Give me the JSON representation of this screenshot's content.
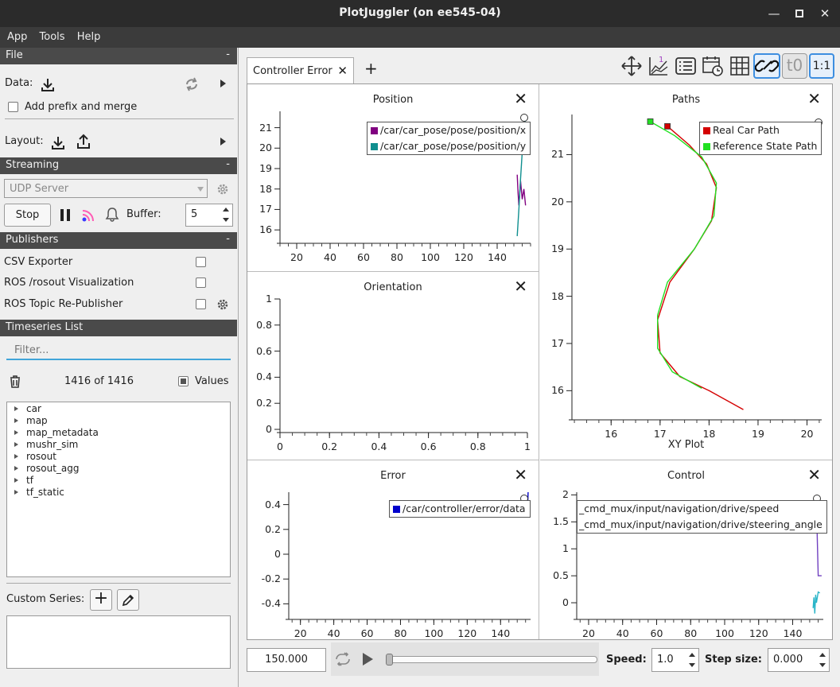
{
  "window": {
    "title": "PlotJuggler (on ee545-04)"
  },
  "menu": [
    "App",
    "Tools",
    "Help"
  ],
  "left": {
    "file": {
      "header": "File",
      "data_label": "Data:",
      "add_prefix_label": "Add prefix and merge",
      "layout_label": "Layout:"
    },
    "streaming": {
      "header": "Streaming",
      "source": "UDP Server",
      "stop_label": "Stop",
      "buffer_label": "Buffer:",
      "buffer_value": "5"
    },
    "publishers": {
      "header": "Publishers",
      "items": [
        "CSV Exporter",
        "ROS /rosout Visualization",
        "ROS Topic Re-Publisher"
      ]
    },
    "timeseries": {
      "header": "Timeseries List",
      "filter_placeholder": "Filter...",
      "count": "1416 of 1416",
      "values_label": "Values",
      "items": [
        "car",
        "map",
        "map_metadata",
        "mushr_sim",
        "rosout",
        "rosout_agg",
        "tf",
        "tf_static"
      ]
    },
    "custom": {
      "label": "Custom Series:"
    },
    "collapse": "-"
  },
  "tabs": [
    {
      "label": "Controller Error"
    }
  ],
  "add_tab": "+",
  "toolbar": {
    "t0_label": "t0",
    "ratio_label": "1:1"
  },
  "bottom": {
    "time": "150.000",
    "speed_label": "Speed:",
    "speed": "1.0",
    "step_label": "Step size:",
    "step": "0.000"
  },
  "colors": {
    "purple": "#800080",
    "teal": "#108f8f",
    "red": "#d40000",
    "green": "#22e022",
    "blue": "#0000cc",
    "light_blue": "#2ab5c8",
    "violet": "#7040c0"
  },
  "chart_data": [
    {
      "type": "line",
      "title": "Position",
      "xlim": [
        10,
        160
      ],
      "ylim": [
        15.5,
        21.8
      ],
      "x_ticks": [
        "20",
        "40",
        "60",
        "80",
        "100",
        "120",
        "140"
      ],
      "y_ticks": [
        "16",
        "17",
        "18",
        "19",
        "20",
        "21"
      ],
      "series": [
        {
          "name": "/car/car_pose/pose/position/x",
          "color": "#800080",
          "x": [
            152,
            152.5,
            153,
            154,
            155,
            156,
            157
          ],
          "y": [
            18.7,
            17.8,
            17.2,
            18.4,
            17.5,
            18.0,
            17.2
          ]
        },
        {
          "name": "/car/car_pose/pose/position/y",
          "color": "#108f8f",
          "x": [
            152,
            153,
            154,
            155,
            156,
            157,
            157.5
          ],
          "y": [
            15.7,
            17.0,
            18.5,
            19.8,
            20.8,
            21.5,
            21.6
          ]
        }
      ]
    },
    {
      "type": "line",
      "title": "Orientation",
      "xlim": [
        0,
        1
      ],
      "ylim": [
        0,
        1
      ],
      "x_ticks": [
        "0",
        "0.2",
        "0.4",
        "0.6",
        "0.8",
        "1"
      ],
      "y_ticks": [
        "0",
        "0.2",
        "0.4",
        "0.6",
        "0.8",
        "1"
      ],
      "series": []
    },
    {
      "type": "line",
      "title": "Error",
      "xlim": [
        13,
        158
      ],
      "ylim": [
        -0.5,
        0.5
      ],
      "x_ticks": [
        "20",
        "40",
        "60",
        "80",
        "100",
        "120",
        "140"
      ],
      "y_ticks": [
        "0.4",
        "0.2",
        "0",
        "-0.2",
        "-0.4"
      ],
      "series": [
        {
          "name": "/car/controller/error/data",
          "color": "#0000cc",
          "x": [
            156,
            156.2,
            156.5
          ],
          "y": [
            0.45,
            0.35,
            0.5
          ]
        }
      ]
    },
    {
      "type": "scatter",
      "title": "Paths",
      "xlabel": "XY Plot",
      "xlim": [
        15.2,
        20.3
      ],
      "ylim": [
        15.45,
        21.85
      ],
      "x_ticks": [
        "16",
        "17",
        "18",
        "19",
        "20"
      ],
      "y_ticks": [
        "16",
        "17",
        "18",
        "19",
        "20",
        "21"
      ],
      "series": [
        {
          "name": "Real Car Path",
          "color": "#d40000",
          "x": [
            17.15,
            17.6,
            17.95,
            18.15,
            18.05,
            17.7,
            17.2,
            16.95,
            17.0,
            17.4,
            18.0,
            18.7
          ],
          "y": [
            21.6,
            21.2,
            20.8,
            20.3,
            19.6,
            19.0,
            18.3,
            17.5,
            16.8,
            16.3,
            16.0,
            15.6
          ]
        },
        {
          "name": "Reference State Path",
          "color": "#22e022",
          "x": [
            16.8,
            17.3,
            17.85,
            18.15,
            18.1,
            17.7,
            17.15,
            16.95,
            16.95,
            17.25,
            17.85
          ],
          "y": [
            21.7,
            21.4,
            20.95,
            20.4,
            19.7,
            19.0,
            18.3,
            17.6,
            16.9,
            16.4,
            16.05
          ]
        }
      ]
    },
    {
      "type": "line",
      "title": "Control",
      "xlim": [
        13,
        158
      ],
      "ylim": [
        -0.25,
        2.05
      ],
      "x_ticks": [
        "20",
        "40",
        "60",
        "80",
        "100",
        "120",
        "140"
      ],
      "y_ticks": [
        "2",
        "1.5",
        "1",
        "0.5",
        "0"
      ],
      "series": [
        {
          "name": "_cmd_mux/input/navigation/drive/speed",
          "color": "#7040c0",
          "x": [
            154,
            154.3,
            155,
            157
          ],
          "y": [
            2.0,
            1.4,
            0.5,
            0.5
          ]
        },
        {
          "name": "_cmd_mux/input/navigation/drive/steering_angle",
          "color": "#2ab5c8",
          "x": [
            152,
            152.5,
            153,
            153.5,
            154,
            155,
            156
          ],
          "y": [
            -0.1,
            0.1,
            -0.2,
            0.15,
            0.0,
            0.2,
            0.18
          ]
        }
      ]
    }
  ]
}
